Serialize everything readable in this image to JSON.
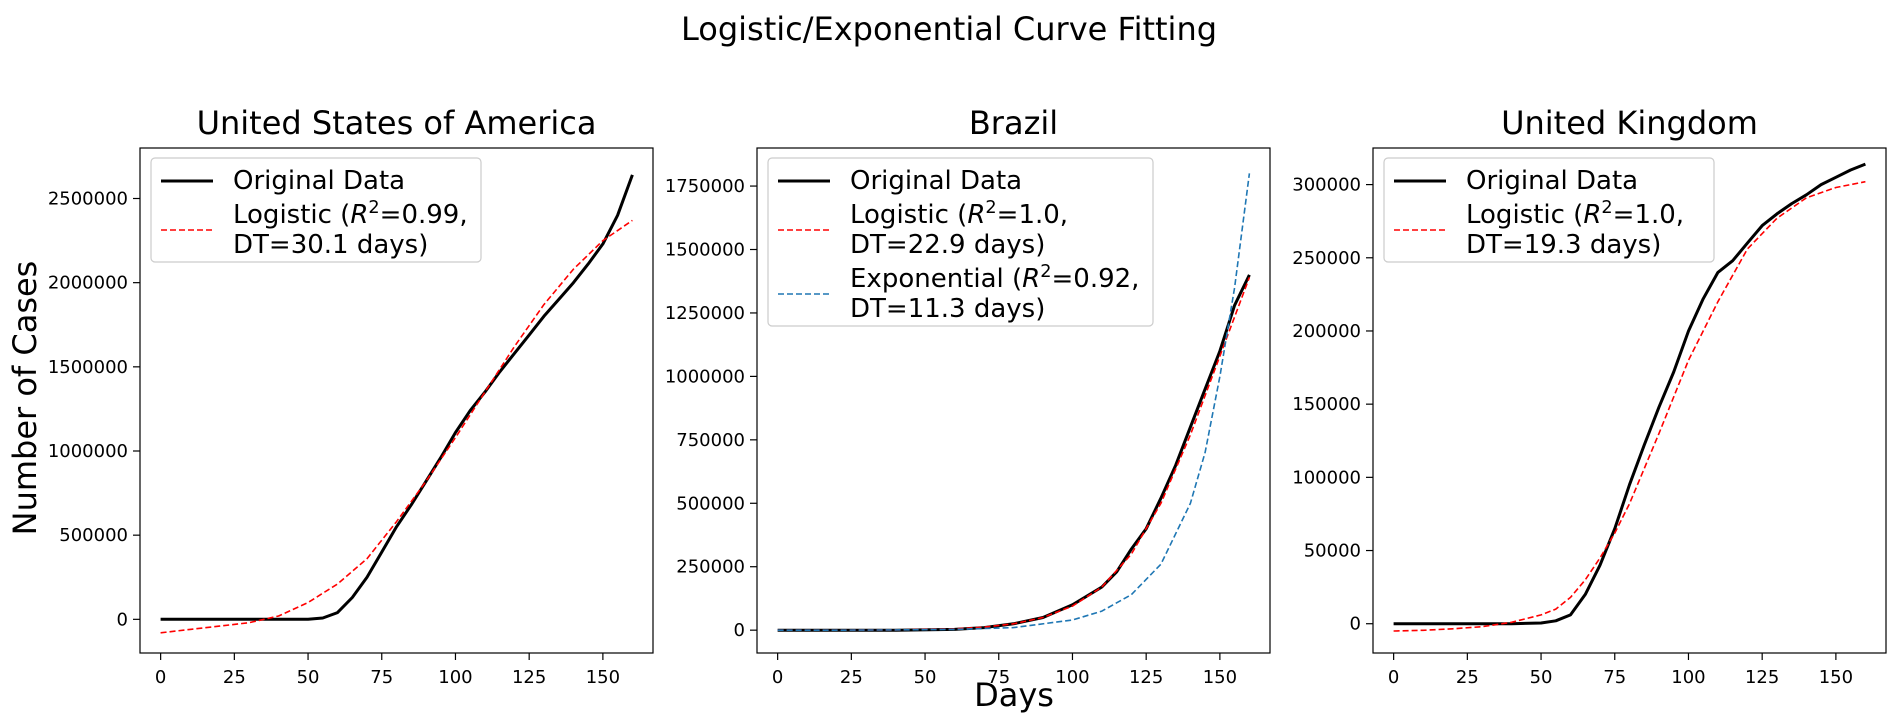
{
  "figure": {
    "title": "Logistic/Exponential Curve Fitting",
    "xlabel": "Days",
    "ylabel": "Number of Cases"
  },
  "chart_data": [
    {
      "type": "line",
      "title": "United States of America",
      "xlim": [
        -7,
        167
      ],
      "ylim": [
        -200000,
        2800000
      ],
      "xticks": [
        0,
        25,
        50,
        75,
        100,
        125,
        150
      ],
      "xtick_labels": [
        "0",
        "25",
        "50",
        "75",
        "100",
        "125",
        "150"
      ],
      "yticks": [
        0,
        500000,
        1000000,
        1500000,
        2000000,
        2500000
      ],
      "ytick_labels": [
        "0",
        "500000",
        "1000000",
        "1500000",
        "2000000",
        "2500000"
      ],
      "legend": {
        "position": "top-left",
        "entries": [
          {
            "label": "Original Data",
            "label_lines": [
              "Original Data"
            ],
            "series": 0
          },
          {
            "label": "Logistic (R^2=0.99, DT=30.1 days)",
            "label_lines": [
              "Logistic (R^2=0.99,",
              " DT=30.1 days)"
            ],
            "series": 1
          }
        ]
      },
      "series": [
        {
          "name": "Original Data",
          "color": "#000000",
          "dash": "solid",
          "x": [
            0,
            10,
            20,
            30,
            40,
            50,
            55,
            60,
            65,
            70,
            75,
            80,
            85,
            90,
            95,
            100,
            105,
            110,
            115,
            120,
            125,
            130,
            135,
            140,
            145,
            150,
            155,
            160
          ],
          "y": [
            0,
            0,
            0,
            0,
            0,
            0,
            8000,
            40000,
            130000,
            250000,
            400000,
            550000,
            680000,
            820000,
            960000,
            1110000,
            1240000,
            1350000,
            1470000,
            1580000,
            1690000,
            1800000,
            1900000,
            2000000,
            2110000,
            2230000,
            2400000,
            2640000
          ]
        },
        {
          "name": "Logistic (R^2=0.99, DT=30.1 days)",
          "color": "#ff0000",
          "dash": "dashed",
          "x": [
            0,
            10,
            20,
            30,
            40,
            50,
            60,
            70,
            80,
            90,
            100,
            110,
            120,
            130,
            140,
            150,
            160
          ],
          "y": [
            -80000,
            -60000,
            -40000,
            -20000,
            20000,
            100000,
            210000,
            360000,
            580000,
            820000,
            1080000,
            1350000,
            1620000,
            1870000,
            2080000,
            2250000,
            2370000
          ]
        }
      ]
    },
    {
      "type": "line",
      "title": "Brazil",
      "xlim": [
        -7,
        167
      ],
      "ylim": [
        -90000,
        1900000
      ],
      "xticks": [
        0,
        25,
        50,
        75,
        100,
        125,
        150
      ],
      "xtick_labels": [
        "0",
        "25",
        "50",
        "75",
        "100",
        "125",
        "150"
      ],
      "yticks": [
        0,
        250000,
        500000,
        750000,
        1000000,
        1250000,
        1500000,
        1750000
      ],
      "ytick_labels": [
        "0",
        "250000",
        "500000",
        "750000",
        "1000000",
        "1250000",
        "1500000",
        "1750000"
      ],
      "legend": {
        "position": "top-left",
        "entries": [
          {
            "label": "Original Data",
            "label_lines": [
              "Original Data"
            ],
            "series": 0
          },
          {
            "label": "Logistic (R^2=1.0, DT=22.9 days)",
            "label_lines": [
              "Logistic (R^2=1.0,",
              " DT=22.9 days)"
            ],
            "series": 1
          },
          {
            "label": "Exponential (R^2=0.92, DT=11.3 days)",
            "label_lines": [
              "Exponential (R^2=0.92,",
              " DT=11.3 days)"
            ],
            "series": 2
          }
        ]
      },
      "series": [
        {
          "name": "Original Data",
          "color": "#000000",
          "dash": "solid",
          "x": [
            0,
            20,
            40,
            60,
            70,
            80,
            90,
            100,
            110,
            115,
            120,
            125,
            130,
            135,
            140,
            145,
            150,
            155,
            160
          ],
          "y": [
            0,
            0,
            0,
            3000,
            10000,
            25000,
            50000,
            100000,
            170000,
            230000,
            320000,
            400000,
            520000,
            650000,
            800000,
            950000,
            1100000,
            1280000,
            1400000
          ]
        },
        {
          "name": "Logistic (R^2=1.0, DT=22.9 days)",
          "color": "#ff0000",
          "dash": "dashed",
          "x": [
            0,
            20,
            40,
            60,
            70,
            80,
            90,
            100,
            110,
            120,
            130,
            140,
            150,
            160
          ],
          "y": [
            0,
            0,
            1000,
            5000,
            12000,
            25000,
            50000,
            95000,
            170000,
            300000,
            500000,
            770000,
            1080000,
            1390000
          ]
        },
        {
          "name": "Exponential (R^2=0.92, DT=11.3 days)",
          "color": "#1f77b4",
          "dash": "dashed",
          "x": [
            0,
            20,
            40,
            60,
            80,
            100,
            110,
            120,
            130,
            140,
            145,
            150,
            155,
            160
          ],
          "y": [
            0,
            0,
            1000,
            3000,
            10000,
            40000,
            75000,
            140000,
            260000,
            500000,
            700000,
            1000000,
            1350000,
            1800000
          ]
        }
      ]
    },
    {
      "type": "line",
      "title": "United Kingdom",
      "xlim": [
        -7,
        167
      ],
      "ylim": [
        -20000,
        325000
      ],
      "xticks": [
        0,
        25,
        50,
        75,
        100,
        125,
        150
      ],
      "xtick_labels": [
        "0",
        "25",
        "50",
        "75",
        "100",
        "125",
        "150"
      ],
      "yticks": [
        0,
        50000,
        100000,
        150000,
        200000,
        250000,
        300000
      ],
      "ytick_labels": [
        "0",
        "50000",
        "100000",
        "150000",
        "200000",
        "250000",
        "300000"
      ],
      "legend": {
        "position": "top-left",
        "entries": [
          {
            "label": "Original Data",
            "label_lines": [
              "Original Data"
            ],
            "series": 0
          },
          {
            "label": "Logistic (R^2=1.0, DT=19.3 days)",
            "label_lines": [
              "Logistic (R^2=1.0,",
              " DT=19.3 days)"
            ],
            "series": 1
          }
        ]
      },
      "series": [
        {
          "name": "Original Data",
          "color": "#000000",
          "dash": "solid",
          "x": [
            0,
            10,
            20,
            30,
            40,
            50,
            55,
            60,
            65,
            70,
            75,
            80,
            85,
            90,
            95,
            100,
            105,
            110,
            115,
            120,
            125,
            130,
            135,
            140,
            145,
            150,
            155,
            160
          ],
          "y": [
            0,
            0,
            0,
            0,
            0,
            500,
            2000,
            6000,
            20000,
            40000,
            65000,
            95000,
            122000,
            148000,
            172000,
            200000,
            222000,
            240000,
            248000,
            260000,
            272000,
            280000,
            287000,
            293000,
            300000,
            305000,
            310000,
            314000
          ]
        },
        {
          "name": "Logistic (R^2=1.0, DT=19.3 days)",
          "color": "#ff0000",
          "dash": "dashed",
          "x": [
            0,
            10,
            20,
            30,
            40,
            50,
            55,
            60,
            65,
            70,
            75,
            80,
            90,
            100,
            110,
            120,
            130,
            140,
            150,
            160
          ],
          "y": [
            -5000,
            -4500,
            -3500,
            -2000,
            1000,
            6000,
            10000,
            18000,
            30000,
            45000,
            62000,
            82000,
            130000,
            180000,
            220000,
            256000,
            277000,
            291000,
            298000,
            302000
          ]
        }
      ]
    }
  ]
}
